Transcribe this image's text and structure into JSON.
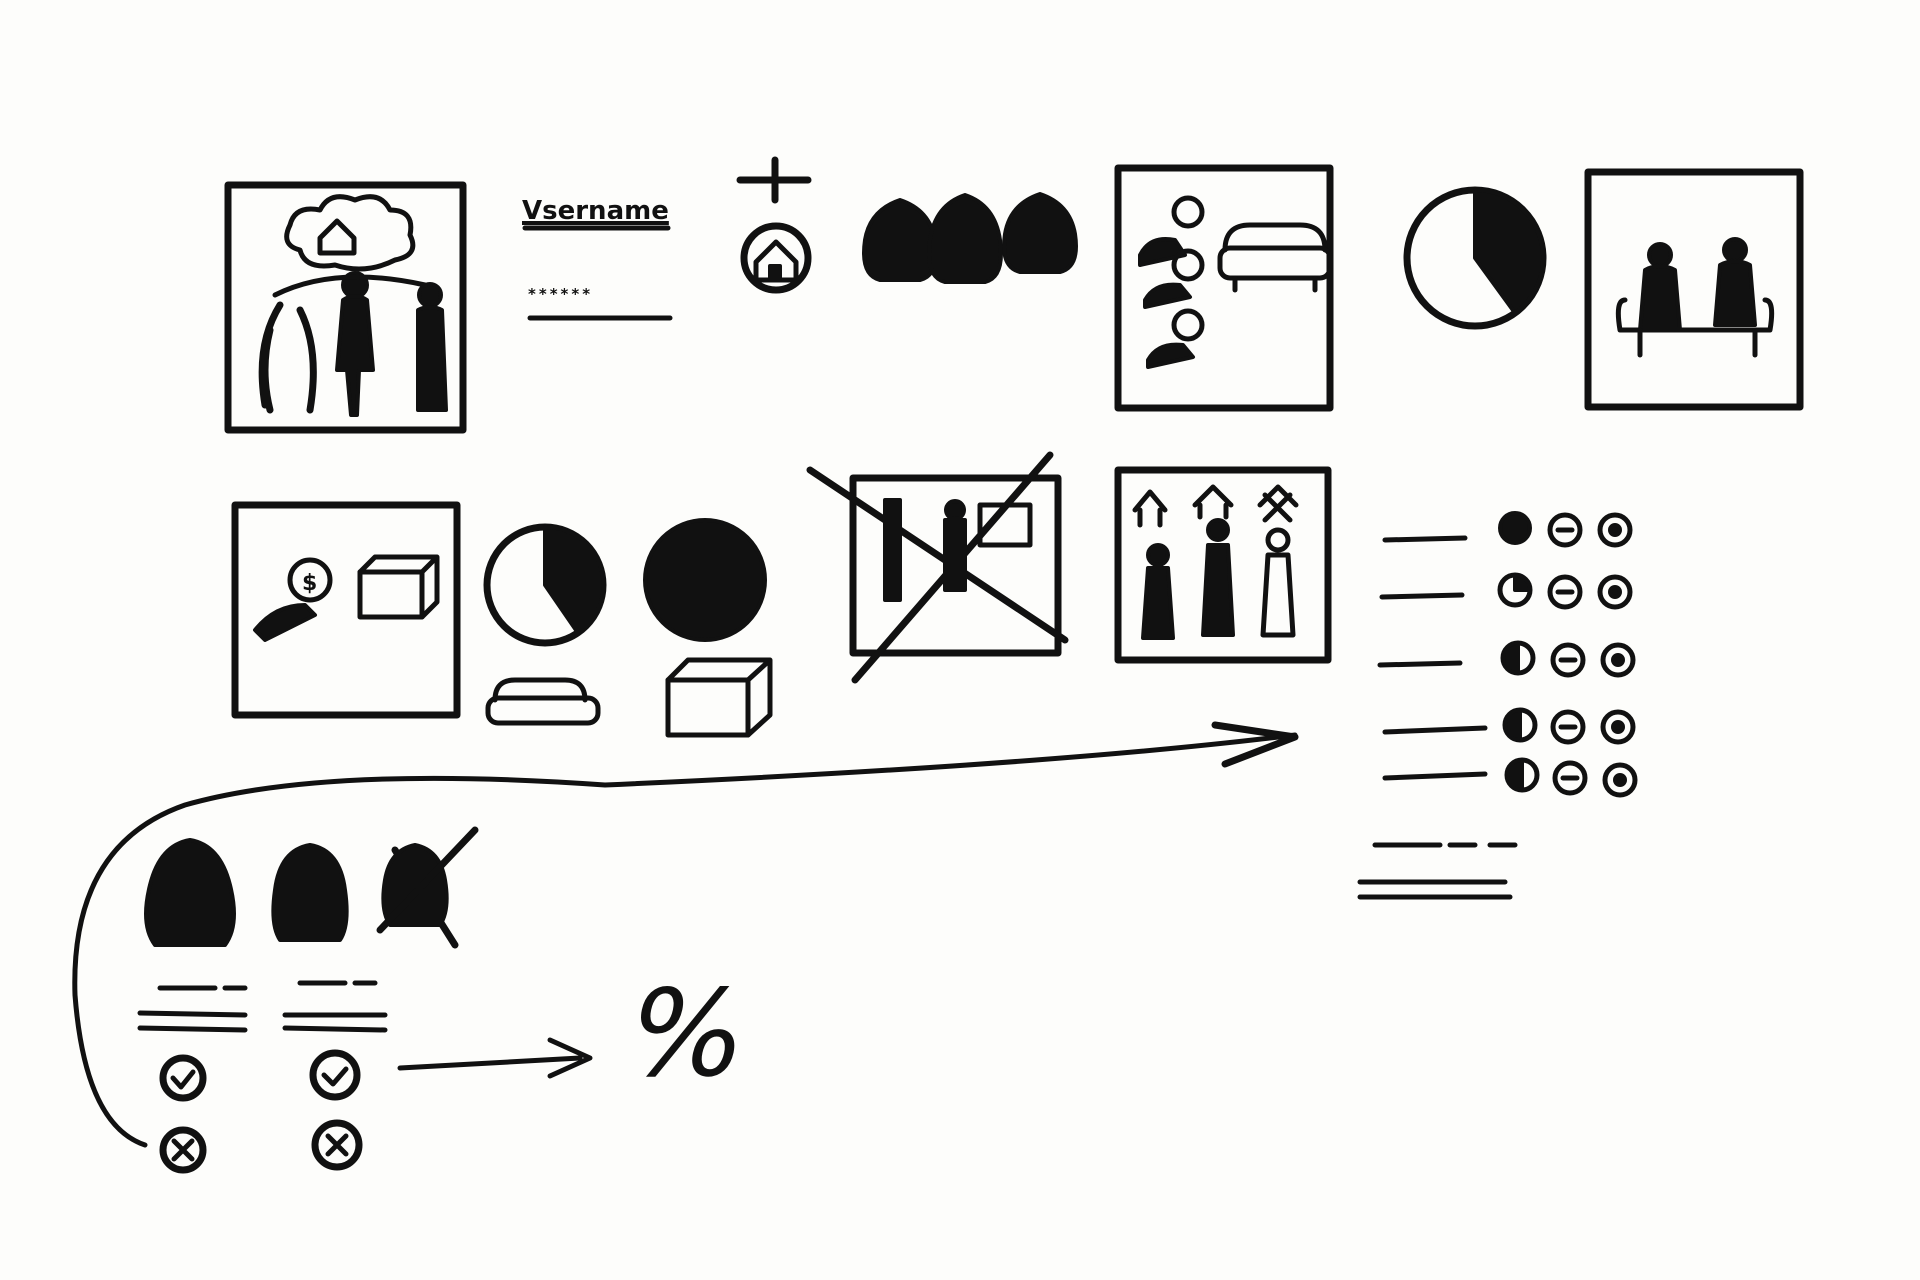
{
  "login": {
    "username_label": "Vsername",
    "password_mask": "******"
  },
  "result": {
    "percent_symbol": "%"
  },
  "icons": {
    "add": "plus-icon",
    "home": "home-circle-icon",
    "check": "check-circle-icon",
    "cancel": "x-circle-icon",
    "arrow": "arrow-right-icon"
  },
  "ink_color": "#111111",
  "paper_color": "#fdfdfb"
}
